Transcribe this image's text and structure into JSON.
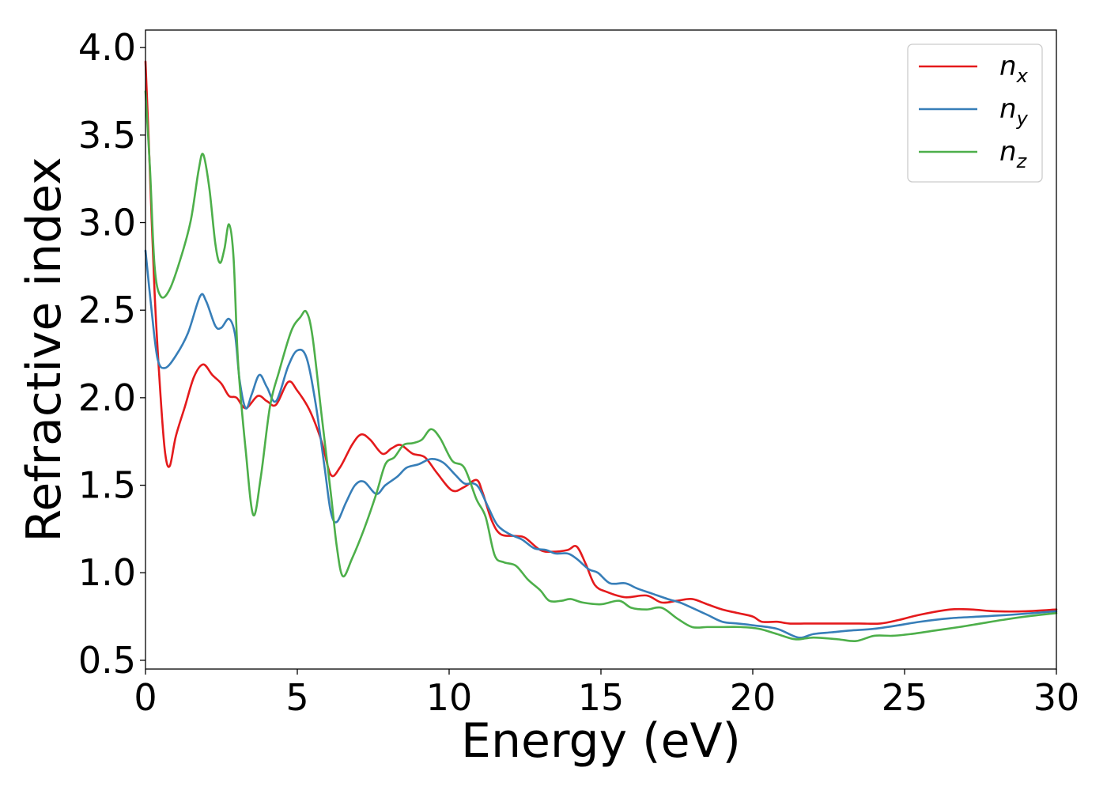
{
  "chart_data": {
    "type": "line",
    "title": "",
    "xlabel": "Energy (eV)",
    "ylabel": "Refractive index",
    "xlim": [
      0,
      30
    ],
    "ylim": [
      0.45,
      4.1
    ],
    "xticks": [
      0,
      5,
      10,
      15,
      20,
      25,
      30
    ],
    "xtick_labels": [
      "0",
      "5",
      "10",
      "15",
      "20",
      "25",
      "30"
    ],
    "yticks": [
      0.5,
      1.0,
      1.5,
      2.0,
      2.5,
      3.0,
      3.5,
      4.0
    ],
    "ytick_labels": [
      "0.5",
      "1.0",
      "1.5",
      "2.0",
      "2.5",
      "3.0",
      "3.5",
      "4.0"
    ],
    "grid": false,
    "legend_position": "top-right",
    "series": [
      {
        "name": "n",
        "subscript": "x",
        "color": "#e41a1c",
        "points": [
          [
            0.0,
            3.92
          ],
          [
            0.1,
            3.5
          ],
          [
            0.3,
            2.6
          ],
          [
            0.5,
            2.0
          ],
          [
            0.65,
            1.68
          ],
          [
            0.8,
            1.61
          ],
          [
            1.0,
            1.78
          ],
          [
            1.3,
            1.95
          ],
          [
            1.6,
            2.12
          ],
          [
            1.9,
            2.19
          ],
          [
            2.2,
            2.13
          ],
          [
            2.5,
            2.08
          ],
          [
            2.75,
            2.01
          ],
          [
            3.0,
            2.0
          ],
          [
            3.3,
            1.94
          ],
          [
            3.7,
            2.01
          ],
          [
            4.0,
            1.98
          ],
          [
            4.3,
            1.96
          ],
          [
            4.7,
            2.09
          ],
          [
            5.0,
            2.04
          ],
          [
            5.4,
            1.93
          ],
          [
            5.8,
            1.75
          ],
          [
            6.1,
            1.56
          ],
          [
            6.4,
            1.6
          ],
          [
            6.8,
            1.73
          ],
          [
            7.1,
            1.79
          ],
          [
            7.4,
            1.76
          ],
          [
            7.8,
            1.68
          ],
          [
            8.1,
            1.71
          ],
          [
            8.4,
            1.73
          ],
          [
            8.8,
            1.68
          ],
          [
            9.2,
            1.66
          ],
          [
            9.6,
            1.57
          ],
          [
            10.1,
            1.47
          ],
          [
            10.5,
            1.49
          ],
          [
            10.9,
            1.53
          ],
          [
            11.1,
            1.46
          ],
          [
            11.4,
            1.3
          ],
          [
            11.7,
            1.22
          ],
          [
            12.2,
            1.21
          ],
          [
            12.5,
            1.2
          ],
          [
            13.0,
            1.13
          ],
          [
            13.4,
            1.12
          ],
          [
            13.9,
            1.13
          ],
          [
            14.2,
            1.15
          ],
          [
            14.5,
            1.05
          ],
          [
            14.8,
            0.93
          ],
          [
            15.2,
            0.89
          ],
          [
            15.8,
            0.86
          ],
          [
            16.5,
            0.87
          ],
          [
            17.0,
            0.83
          ],
          [
            17.5,
            0.84
          ],
          [
            18.0,
            0.85
          ],
          [
            18.5,
            0.82
          ],
          [
            19.0,
            0.79
          ],
          [
            19.5,
            0.77
          ],
          [
            20.0,
            0.75
          ],
          [
            20.3,
            0.72
          ],
          [
            20.8,
            0.72
          ],
          [
            21.2,
            0.71
          ],
          [
            21.8,
            0.71
          ],
          [
            22.5,
            0.71
          ],
          [
            23.5,
            0.71
          ],
          [
            24.2,
            0.71
          ],
          [
            24.8,
            0.73
          ],
          [
            25.5,
            0.76
          ],
          [
            26.5,
            0.79
          ],
          [
            27.2,
            0.79
          ],
          [
            28.0,
            0.78
          ],
          [
            29.0,
            0.78
          ],
          [
            30.0,
            0.79
          ]
        ]
      },
      {
        "name": "n",
        "subscript": "y",
        "color": "#377eb8",
        "points": [
          [
            0.0,
            2.84
          ],
          [
            0.2,
            2.5
          ],
          [
            0.4,
            2.22
          ],
          [
            0.65,
            2.17
          ],
          [
            1.0,
            2.24
          ],
          [
            1.4,
            2.37
          ],
          [
            1.8,
            2.58
          ],
          [
            2.0,
            2.55
          ],
          [
            2.3,
            2.41
          ],
          [
            2.5,
            2.4
          ],
          [
            2.75,
            2.45
          ],
          [
            2.95,
            2.36
          ],
          [
            3.1,
            2.1
          ],
          [
            3.3,
            1.94
          ],
          [
            3.5,
            2.02
          ],
          [
            3.75,
            2.13
          ],
          [
            4.0,
            2.06
          ],
          [
            4.3,
            1.98
          ],
          [
            4.7,
            2.18
          ],
          [
            5.0,
            2.27
          ],
          [
            5.3,
            2.23
          ],
          [
            5.6,
            1.97
          ],
          [
            5.9,
            1.6
          ],
          [
            6.1,
            1.35
          ],
          [
            6.3,
            1.29
          ],
          [
            6.6,
            1.4
          ],
          [
            6.9,
            1.5
          ],
          [
            7.2,
            1.52
          ],
          [
            7.6,
            1.45
          ],
          [
            7.9,
            1.5
          ],
          [
            8.3,
            1.55
          ],
          [
            8.6,
            1.6
          ],
          [
            9.0,
            1.62
          ],
          [
            9.4,
            1.65
          ],
          [
            9.8,
            1.63
          ],
          [
            10.2,
            1.56
          ],
          [
            10.5,
            1.51
          ],
          [
            10.8,
            1.51
          ],
          [
            11.0,
            1.48
          ],
          [
            11.3,
            1.37
          ],
          [
            11.6,
            1.27
          ],
          [
            12.0,
            1.22
          ],
          [
            12.4,
            1.19
          ],
          [
            12.8,
            1.14
          ],
          [
            13.2,
            1.13
          ],
          [
            13.5,
            1.11
          ],
          [
            13.9,
            1.11
          ],
          [
            14.2,
            1.08
          ],
          [
            14.6,
            1.02
          ],
          [
            14.9,
            1.0
          ],
          [
            15.3,
            0.94
          ],
          [
            15.8,
            0.94
          ],
          [
            16.2,
            0.91
          ],
          [
            16.7,
            0.88
          ],
          [
            17.2,
            0.85
          ],
          [
            17.6,
            0.83
          ],
          [
            18.0,
            0.8
          ],
          [
            18.5,
            0.76
          ],
          [
            19.0,
            0.72
          ],
          [
            19.5,
            0.71
          ],
          [
            20.0,
            0.7
          ],
          [
            20.8,
            0.68
          ],
          [
            21.5,
            0.63
          ],
          [
            22.0,
            0.65
          ],
          [
            22.6,
            0.66
          ],
          [
            23.2,
            0.67
          ],
          [
            24.0,
            0.68
          ],
          [
            24.8,
            0.7
          ],
          [
            25.5,
            0.72
          ],
          [
            26.5,
            0.74
          ],
          [
            27.5,
            0.75
          ],
          [
            28.5,
            0.76
          ],
          [
            30.0,
            0.78
          ]
        ]
      },
      {
        "name": "n",
        "subscript": "z",
        "color": "#4daf4a",
        "points": [
          [
            0.0,
            3.75
          ],
          [
            0.15,
            3.3
          ],
          [
            0.3,
            2.75
          ],
          [
            0.5,
            2.58
          ],
          [
            0.8,
            2.62
          ],
          [
            1.2,
            2.82
          ],
          [
            1.5,
            3.02
          ],
          [
            1.75,
            3.3
          ],
          [
            1.9,
            3.39
          ],
          [
            2.1,
            3.2
          ],
          [
            2.3,
            2.88
          ],
          [
            2.45,
            2.77
          ],
          [
            2.6,
            2.85
          ],
          [
            2.75,
            2.99
          ],
          [
            2.9,
            2.8
          ],
          [
            3.05,
            2.2
          ],
          [
            3.3,
            1.7
          ],
          [
            3.55,
            1.33
          ],
          [
            3.8,
            1.55
          ],
          [
            4.1,
            1.95
          ],
          [
            4.4,
            2.15
          ],
          [
            4.8,
            2.38
          ],
          [
            5.1,
            2.46
          ],
          [
            5.3,
            2.49
          ],
          [
            5.5,
            2.35
          ],
          [
            5.8,
            1.9
          ],
          [
            6.1,
            1.46
          ],
          [
            6.3,
            1.15
          ],
          [
            6.5,
            0.98
          ],
          [
            6.8,
            1.08
          ],
          [
            7.2,
            1.25
          ],
          [
            7.6,
            1.45
          ],
          [
            7.9,
            1.62
          ],
          [
            8.2,
            1.66
          ],
          [
            8.5,
            1.73
          ],
          [
            8.8,
            1.74
          ],
          [
            9.1,
            1.76
          ],
          [
            9.4,
            1.82
          ],
          [
            9.7,
            1.77
          ],
          [
            10.1,
            1.64
          ],
          [
            10.5,
            1.6
          ],
          [
            10.9,
            1.42
          ],
          [
            11.2,
            1.32
          ],
          [
            11.5,
            1.1
          ],
          [
            11.8,
            1.06
          ],
          [
            12.2,
            1.04
          ],
          [
            12.6,
            0.96
          ],
          [
            13.0,
            0.9
          ],
          [
            13.3,
            0.84
          ],
          [
            13.7,
            0.84
          ],
          [
            14.0,
            0.85
          ],
          [
            14.4,
            0.83
          ],
          [
            15.0,
            0.82
          ],
          [
            15.6,
            0.84
          ],
          [
            16.0,
            0.8
          ],
          [
            16.5,
            0.79
          ],
          [
            17.0,
            0.8
          ],
          [
            17.5,
            0.74
          ],
          [
            18.0,
            0.69
          ],
          [
            18.5,
            0.69
          ],
          [
            19.0,
            0.69
          ],
          [
            19.6,
            0.69
          ],
          [
            20.2,
            0.68
          ],
          [
            20.8,
            0.65
          ],
          [
            21.4,
            0.62
          ],
          [
            22.0,
            0.63
          ],
          [
            22.8,
            0.62
          ],
          [
            23.4,
            0.61
          ],
          [
            24.0,
            0.64
          ],
          [
            24.6,
            0.64
          ],
          [
            25.2,
            0.65
          ],
          [
            26.0,
            0.67
          ],
          [
            26.8,
            0.69
          ],
          [
            27.5,
            0.71
          ],
          [
            28.2,
            0.73
          ],
          [
            29.0,
            0.75
          ],
          [
            30.0,
            0.77
          ]
        ]
      }
    ]
  }
}
